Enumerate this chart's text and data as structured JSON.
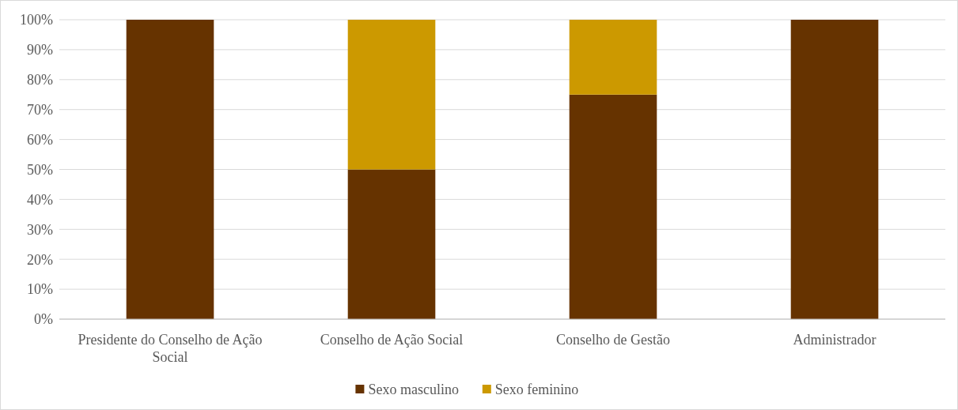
{
  "chart_data": {
    "type": "bar",
    "stacked": true,
    "categories": [
      "Presidente do Conselho de Ação Social",
      "Conselho de Ação Social",
      "Conselho de Gestão",
      "Administrador"
    ],
    "series": [
      {
        "name": "Sexo masculino",
        "color": "#663300",
        "values": [
          100,
          50,
          75,
          100
        ]
      },
      {
        "name": "Sexo feminino",
        "color": "#cc9900",
        "values": [
          0,
          50,
          25,
          0
        ]
      }
    ],
    "ylim": [
      0,
      100
    ],
    "yticks": [
      {
        "value": 0,
        "label": "0%"
      },
      {
        "value": 10,
        "label": "10%"
      },
      {
        "value": 20,
        "label": "20%"
      },
      {
        "value": 30,
        "label": "30%"
      },
      {
        "value": 40,
        "label": "40%"
      },
      {
        "value": 50,
        "label": "50%"
      },
      {
        "value": 60,
        "label": "60%"
      },
      {
        "value": 70,
        "label": "70%"
      },
      {
        "value": 80,
        "label": "80%"
      },
      {
        "value": 90,
        "label": "90%"
      },
      {
        "value": 100,
        "label": "100%"
      }
    ],
    "grid": "y",
    "legend": "bottom"
  }
}
